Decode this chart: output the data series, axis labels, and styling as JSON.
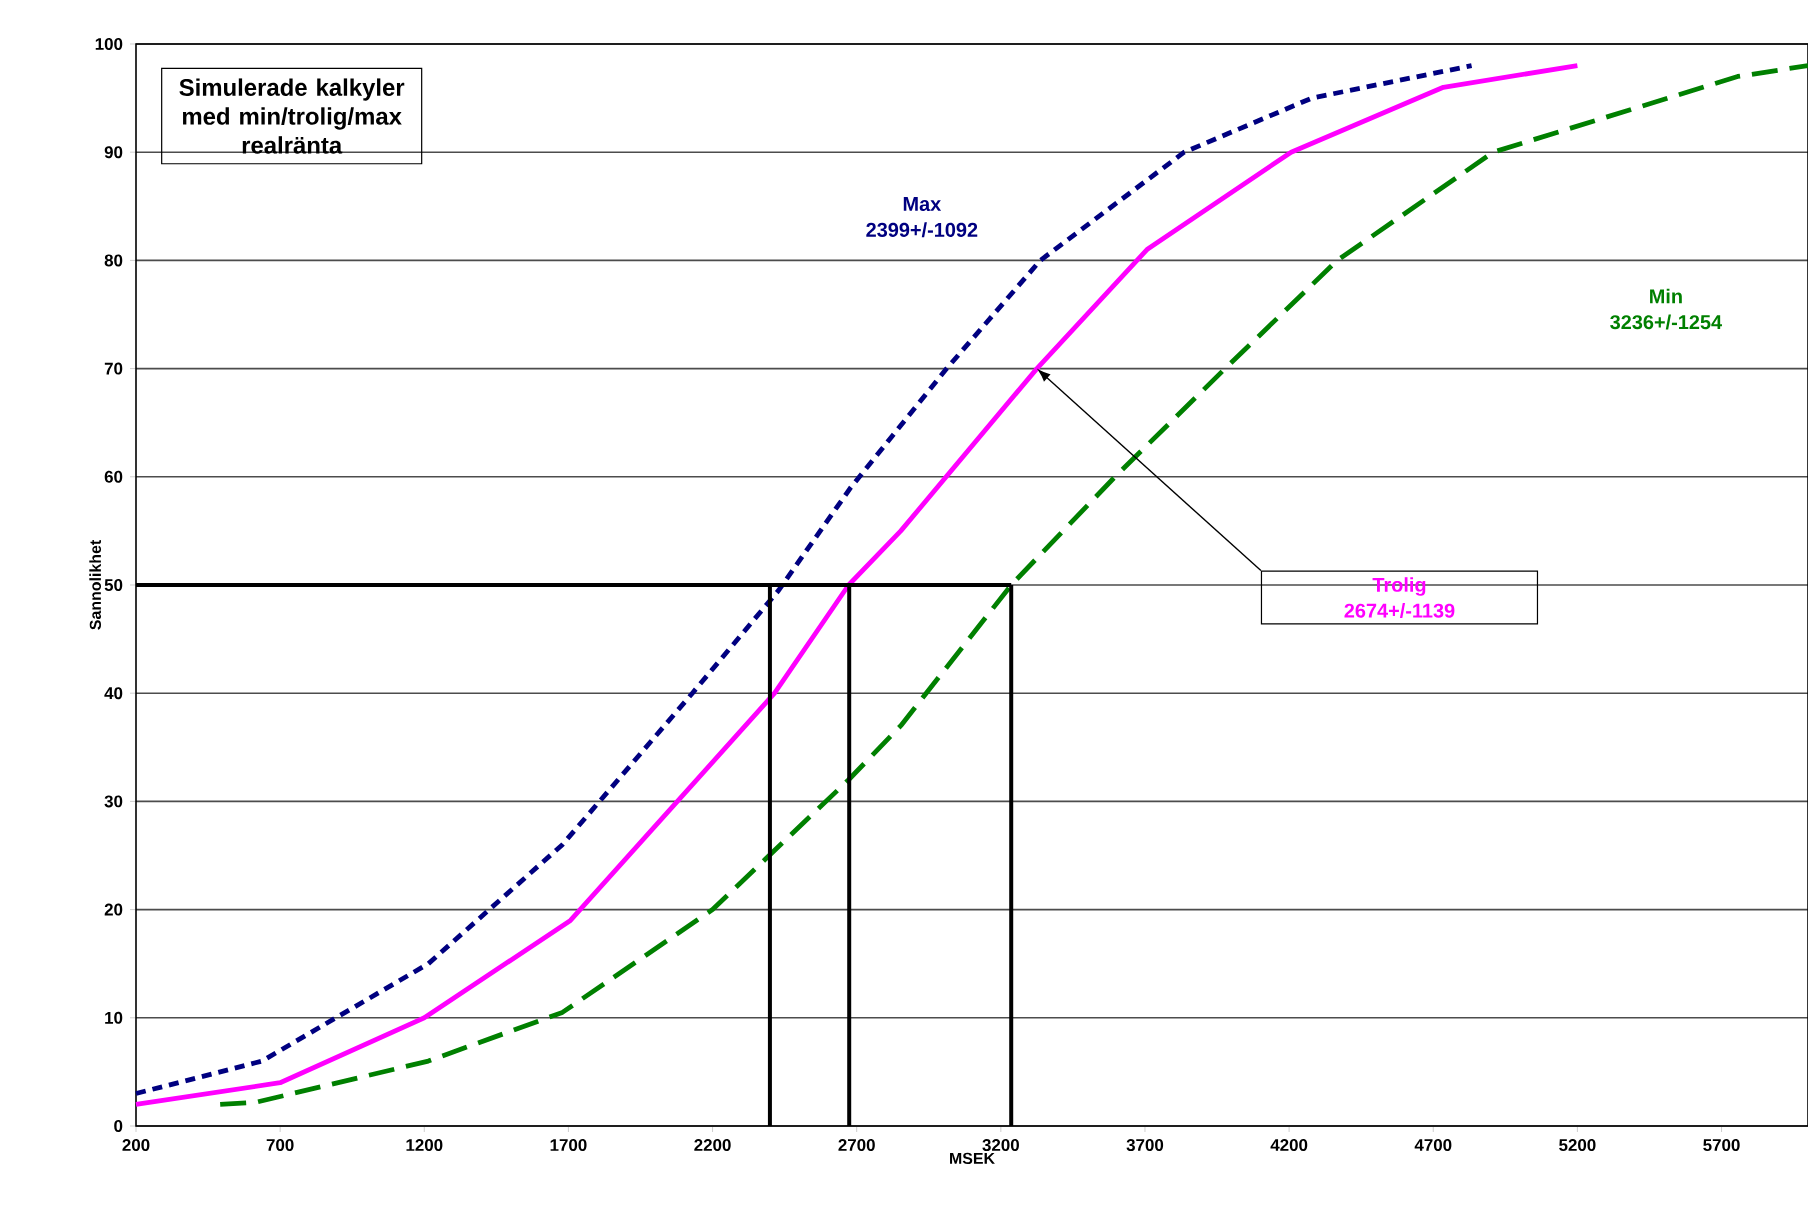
{
  "chart_data": {
    "type": "line",
    "title": "Simulerade kalkyler med min/trolig/max realränta",
    "xlabel": "MSEK",
    "ylabel": "Sannolikhet",
    "xlim": [
      200,
      6000
    ],
    "xticks": [
      200,
      700,
      1200,
      1700,
      2200,
      2700,
      3200,
      3700,
      4200,
      4700,
      5200,
      5700
    ],
    "ylim": [
      0,
      100
    ],
    "yticks": [
      0,
      10,
      20,
      30,
      40,
      50,
      60,
      70,
      80,
      90,
      100
    ],
    "grid": "y",
    "legend": false,
    "series": [
      {
        "name": "Max",
        "color": "#000080",
        "line_style": "dotted",
        "x": [
          200,
          637,
          1214,
          1679,
          2130,
          2429,
          2679,
          3012,
          3337,
          3836,
          4279,
          4833
        ],
        "values": [
          3,
          6,
          15,
          26,
          40,
          49.5,
          59,
          70,
          80,
          90,
          95,
          98
        ]
      },
      {
        "name": "Trolig",
        "color": "#ff00ff",
        "line_style": "solid",
        "x": [
          200,
          700,
          1200,
          1707,
          2415,
          2672,
          2853,
          3325,
          3707,
          4207,
          4735,
          5200
        ],
        "values": [
          2,
          4,
          10,
          19,
          40,
          50,
          55,
          70,
          81,
          90,
          96,
          98
        ]
      },
      {
        "name": "Min",
        "color": "#008000",
        "line_style": "dashed",
        "x": [
          492,
          617,
          1214,
          1679,
          2200,
          2672,
          2853,
          3236,
          3596,
          3978,
          4367,
          4908,
          5756,
          6000
        ],
        "values": [
          2,
          2.2,
          6,
          10.5,
          20,
          32,
          37,
          50,
          60,
          70,
          80,
          90,
          97,
          98
        ]
      },
      {
        "color": "#000000",
        "line_style": "solid",
        "x": [
          200,
          3236
        ],
        "values": [
          50,
          50
        ]
      },
      {
        "color": "#000000",
        "line_style": "solid",
        "x": [
          2399,
          2399
        ],
        "values": [
          0,
          50
        ]
      },
      {
        "color": "#000000",
        "line_style": "solid",
        "x": [
          2674,
          2674
        ],
        "values": [
          0,
          50
        ]
      },
      {
        "color": "#000000",
        "line_style": "solid",
        "x": [
          3236,
          3236
        ],
        "values": [
          0,
          50
        ]
      }
    ],
    "annotations": [
      "2399+/-1092",
      "2674+/-1139",
      "3236+/-1254"
    ]
  }
}
